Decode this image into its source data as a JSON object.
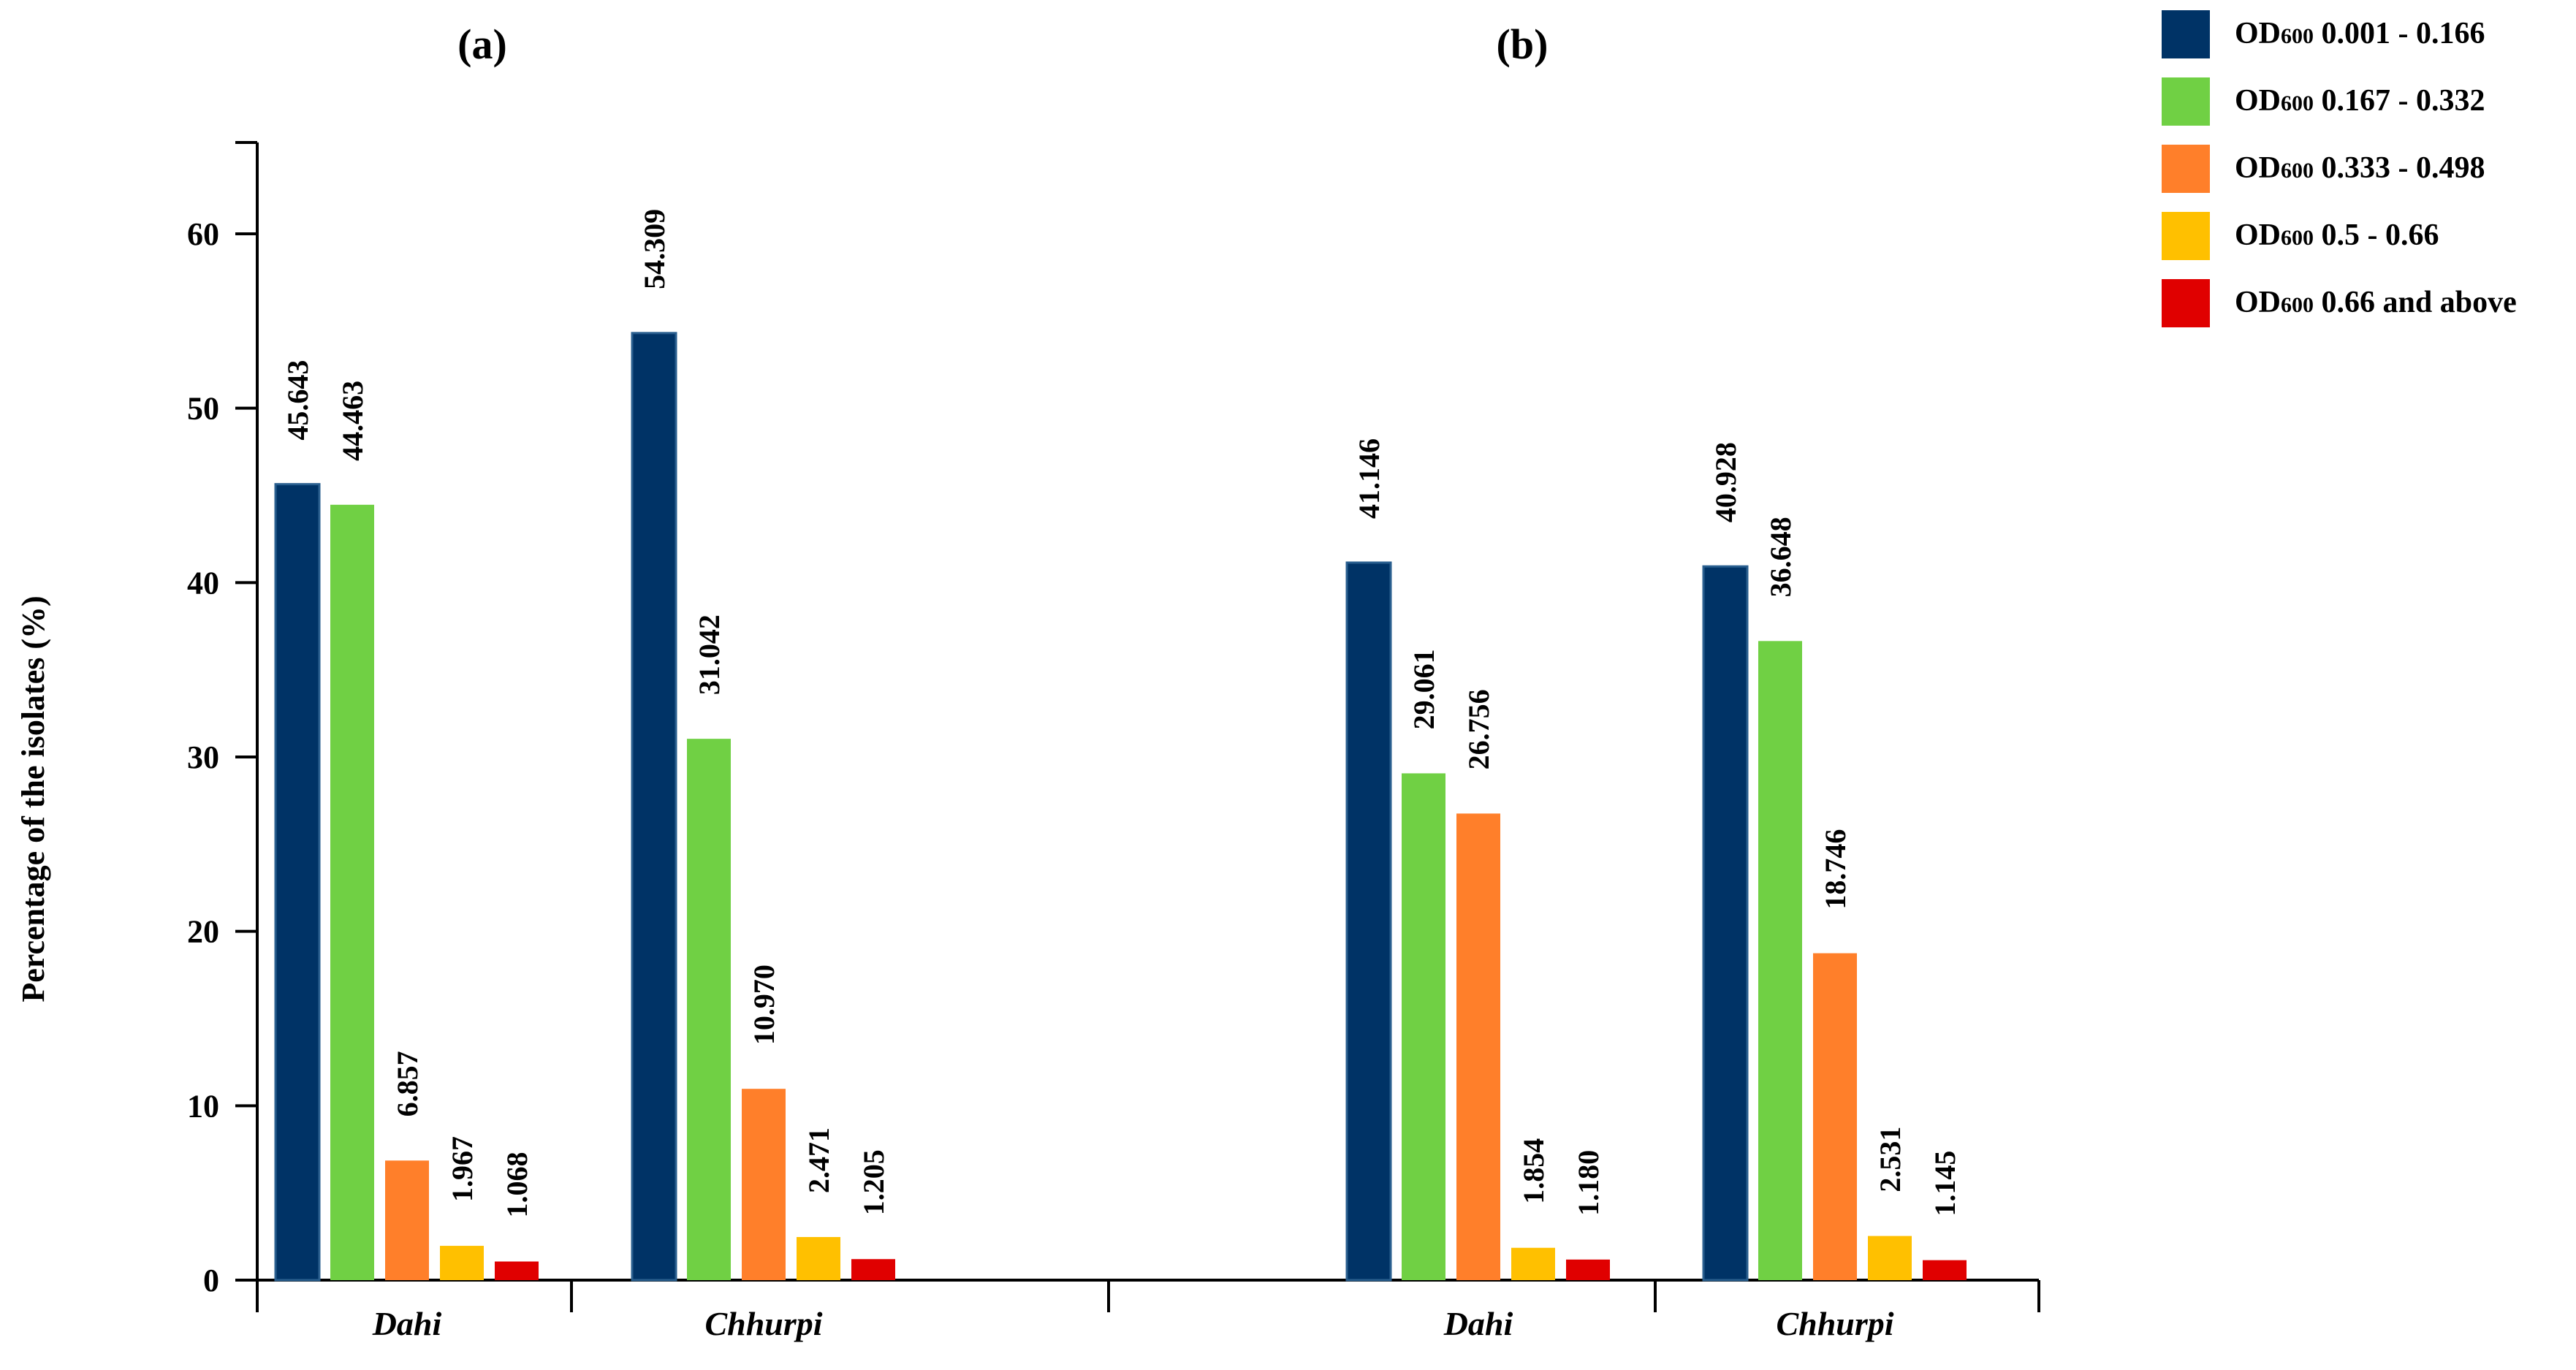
{
  "chart_data": {
    "type": "bar",
    "ylabel": "Percentage of the isolates (%)",
    "xlabel": "",
    "ylim": [
      0,
      65
    ],
    "yticks": [
      0,
      10,
      20,
      30,
      40,
      50,
      60
    ],
    "grid": false,
    "legend_position": "top-right",
    "series": [
      {
        "name": "OD600 0.001 - 0.166",
        "prefix": "OD",
        "subscript": "600",
        "range": "0.001 - 0.166",
        "color": "#003366"
      },
      {
        "name": "OD600 0.167 - 0.332",
        "prefix": "OD",
        "subscript": "600",
        "range": "0.167 - 0.332",
        "color": "#70D044"
      },
      {
        "name": "OD600 0.333 - 0.498",
        "prefix": "OD",
        "subscript": "600",
        "range": "0.333 - 0.498",
        "color": "#FF7F2A"
      },
      {
        "name": "OD600 0.5 - 0.66",
        "prefix": "OD",
        "subscript": "600",
        "range": "0.5 - 0.66",
        "color": "#FFC000"
      },
      {
        "name": "OD600 0.66 and above",
        "prefix": "OD",
        "subscript": "600",
        "range": "0.66 and above",
        "color": "#E00000"
      }
    ],
    "panels": [
      {
        "label": "(a)",
        "groups": [
          {
            "category": "Dahi",
            "values": [
              45.643,
              44.463,
              6.857,
              1.967,
              1.068
            ],
            "value_labels": [
              "45.643",
              "44.463",
              "6.857",
              "1.967",
              "1.068"
            ]
          },
          {
            "category": "Chhurpi",
            "values": [
              54.309,
              31.042,
              10.97,
              2.471,
              1.205
            ],
            "value_labels": [
              "54.309",
              "31.042",
              "10.970",
              "2.471",
              "1.205"
            ]
          }
        ]
      },
      {
        "label": "(b)",
        "groups": [
          {
            "category": "Dahi",
            "values": [
              41.146,
              29.061,
              26.756,
              1.854,
              1.18
            ],
            "value_labels": [
              "41.146",
              "29.061",
              "26.756",
              "1.854",
              "1.180"
            ]
          },
          {
            "category": "Chhurpi",
            "values": [
              40.928,
              36.648,
              18.746,
              2.531,
              1.145
            ],
            "value_labels": [
              "40.928",
              "36.648",
              "18.746",
              "2.531",
              "1.145"
            ]
          }
        ]
      }
    ]
  }
}
